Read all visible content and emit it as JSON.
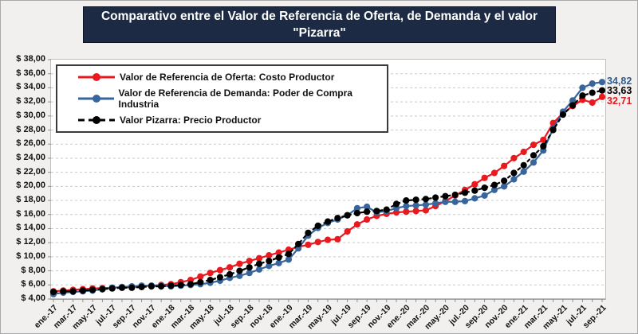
{
  "title": {
    "text": "Comparativo entre el Valor de Referencia de Oferta, de Demanda y el valor \"Pizarra\""
  },
  "legend": {
    "entries": [
      {
        "id": "oferta",
        "label": "Valor de Referencia de Oferta: Costo Productor",
        "color": "#e8191f",
        "line_style": "solid"
      },
      {
        "id": "demanda",
        "label": "Valor de Referencia de Demanda: Poder de Compra Industria",
        "color": "#38659b",
        "line_style": "solid"
      },
      {
        "id": "pizarra",
        "label": "Valor Pizarra: Precio Productor",
        "color": "#000000",
        "line_style": "dashed"
      }
    ]
  },
  "y_axis": {
    "tick_labels": [
      "$ 38,00",
      "$ 36,00",
      "$ 34,00",
      "$ 32,00",
      "$ 30,00",
      "$ 28,00",
      "$ 26,00",
      "$ 24,00",
      "$ 22,00",
      "$ 20,00",
      "$ 18,00",
      "$ 16,00",
      "$ 14,00",
      "$ 12,00",
      "$ 10,00",
      "$ 8,00",
      "$ 6,00",
      "$ 4,00"
    ]
  },
  "x_axis": {
    "tick_labels": [
      "ene.-17",
      "mar.-17",
      "may.-17",
      "jul.-17",
      "sep.-17",
      "nov.-17",
      "ene.-18",
      "mar.-18",
      "may.-18",
      "jul.-18",
      "sep.-18",
      "nov.-18",
      "ene.-19",
      "mar.-19",
      "may.-19",
      "jul.-19",
      "sep.-19",
      "nov.-19",
      "ene.-20",
      "mar.-20",
      "may.-20",
      "jul.-20",
      "sep.-20",
      "nov.-20",
      "ene.-21",
      "mar.-21",
      "may.-21",
      "jul.-21",
      "sep.-21"
    ]
  },
  "end_labels": [
    {
      "text": "34,82",
      "value": 34.82,
      "color": "#2e5d8e"
    },
    {
      "text": "33,63",
      "value": 33.63,
      "color": "#000000"
    },
    {
      "text": "32,71",
      "value": 32.71,
      "color": "#e8191f"
    }
  ],
  "chart_data": {
    "type": "line",
    "title": "Comparativo entre el Valor de Referencia de Oferta, de Demanda y el valor \"Pizarra\"",
    "xlabel": "",
    "ylabel": "",
    "ylim": [
      4,
      38
    ],
    "y_tick_step": 2,
    "grid": "horizontal-dashed",
    "legend_position": "top-left-inside",
    "currency_format": "$ #.##0,00",
    "categories": [
      "ene.-17",
      "feb.-17",
      "mar.-17",
      "abr.-17",
      "may.-17",
      "jun.-17",
      "jul.-17",
      "ago.-17",
      "sep.-17",
      "oct.-17",
      "nov.-17",
      "dic.-17",
      "ene.-18",
      "feb.-18",
      "mar.-18",
      "abr.-18",
      "may.-18",
      "jun.-18",
      "jul.-18",
      "ago.-18",
      "sep.-18",
      "oct.-18",
      "nov.-18",
      "dic.-18",
      "ene.-19",
      "feb.-19",
      "mar.-19",
      "abr.-19",
      "may.-19",
      "jun.-19",
      "jul.-19",
      "ago.-19",
      "sep.-19",
      "oct.-19",
      "nov.-19",
      "dic.-19",
      "ene.-20",
      "feb.-20",
      "mar.-20",
      "abr.-20",
      "may.-20",
      "jun.-20",
      "jul.-20",
      "ago.-20",
      "sep.-20",
      "oct.-20",
      "nov.-20",
      "dic.-20",
      "ene.-21",
      "feb.-21",
      "mar.-21",
      "abr.-21",
      "may.-21",
      "jun.-21",
      "jul.-21",
      "ago.-21",
      "sep.-21"
    ],
    "series": [
      {
        "id": "oferta",
        "name": "Valor de Referencia de Oferta: Costo Productor",
        "color": "#e8191f",
        "line_style": "solid",
        "marker": "circle",
        "values": [
          5.1,
          5.2,
          5.3,
          5.4,
          5.5,
          5.55,
          5.6,
          5.65,
          5.7,
          5.8,
          5.9,
          6.0,
          6.1,
          6.4,
          6.7,
          7.2,
          7.7,
          8.1,
          8.5,
          9.0,
          9.4,
          9.8,
          10.2,
          10.6,
          11.0,
          11.4,
          11.7,
          12.1,
          12.4,
          12.5,
          13.6,
          14.6,
          15.3,
          15.8,
          16.1,
          16.3,
          16.4,
          16.5,
          16.6,
          17.2,
          17.9,
          18.7,
          19.5,
          20.3,
          21.2,
          21.9,
          22.9,
          24.0,
          24.9,
          25.9,
          26.6,
          29.0,
          30.4,
          31.4,
          32.3,
          31.9,
          32.71
        ],
        "last_value_label": "32,71"
      },
      {
        "id": "demanda",
        "name": "Valor de Referencia de Demanda: Poder de Compra Industria",
        "color": "#38659b",
        "line_style": "solid",
        "marker": "circle",
        "values": [
          4.7,
          4.9,
          5.0,
          5.1,
          5.2,
          5.4,
          5.6,
          5.7,
          5.8,
          5.9,
          5.9,
          5.9,
          5.8,
          5.9,
          6.0,
          6.1,
          6.3,
          6.6,
          7.0,
          7.3,
          7.7,
          8.2,
          8.7,
          9.1,
          9.6,
          11.2,
          13.0,
          14.1,
          14.8,
          15.3,
          15.9,
          16.9,
          17.1,
          16.3,
          16.5,
          16.9,
          17.2,
          17.3,
          17.4,
          17.6,
          17.8,
          17.8,
          17.9,
          18.3,
          18.7,
          19.5,
          20.0,
          21.0,
          22.1,
          23.4,
          25.1,
          28.2,
          30.6,
          32.2,
          34.0,
          34.6,
          34.82
        ],
        "last_value_label": "34,82"
      },
      {
        "id": "pizarra",
        "name": "Valor Pizarra: Precio Productor",
        "color": "#000000",
        "line_style": "dashed",
        "marker": "circle",
        "values": [
          5.0,
          5.1,
          5.1,
          5.2,
          5.3,
          5.4,
          5.5,
          5.6,
          5.6,
          5.7,
          5.8,
          5.8,
          5.9,
          6.0,
          6.1,
          6.4,
          6.7,
          7.1,
          7.5,
          8.0,
          8.5,
          9.0,
          9.4,
          9.9,
          10.4,
          11.8,
          13.4,
          14.4,
          15.0,
          15.5,
          15.9,
          16.2,
          16.4,
          16.5,
          16.7,
          17.5,
          18.0,
          18.1,
          18.2,
          18.4,
          18.6,
          18.8,
          19.1,
          19.4,
          19.8,
          20.2,
          20.8,
          21.9,
          23.0,
          24.4,
          25.7,
          28.0,
          30.2,
          31.5,
          32.9,
          33.3,
          33.63
        ],
        "last_value_label": "33,63"
      }
    ]
  }
}
